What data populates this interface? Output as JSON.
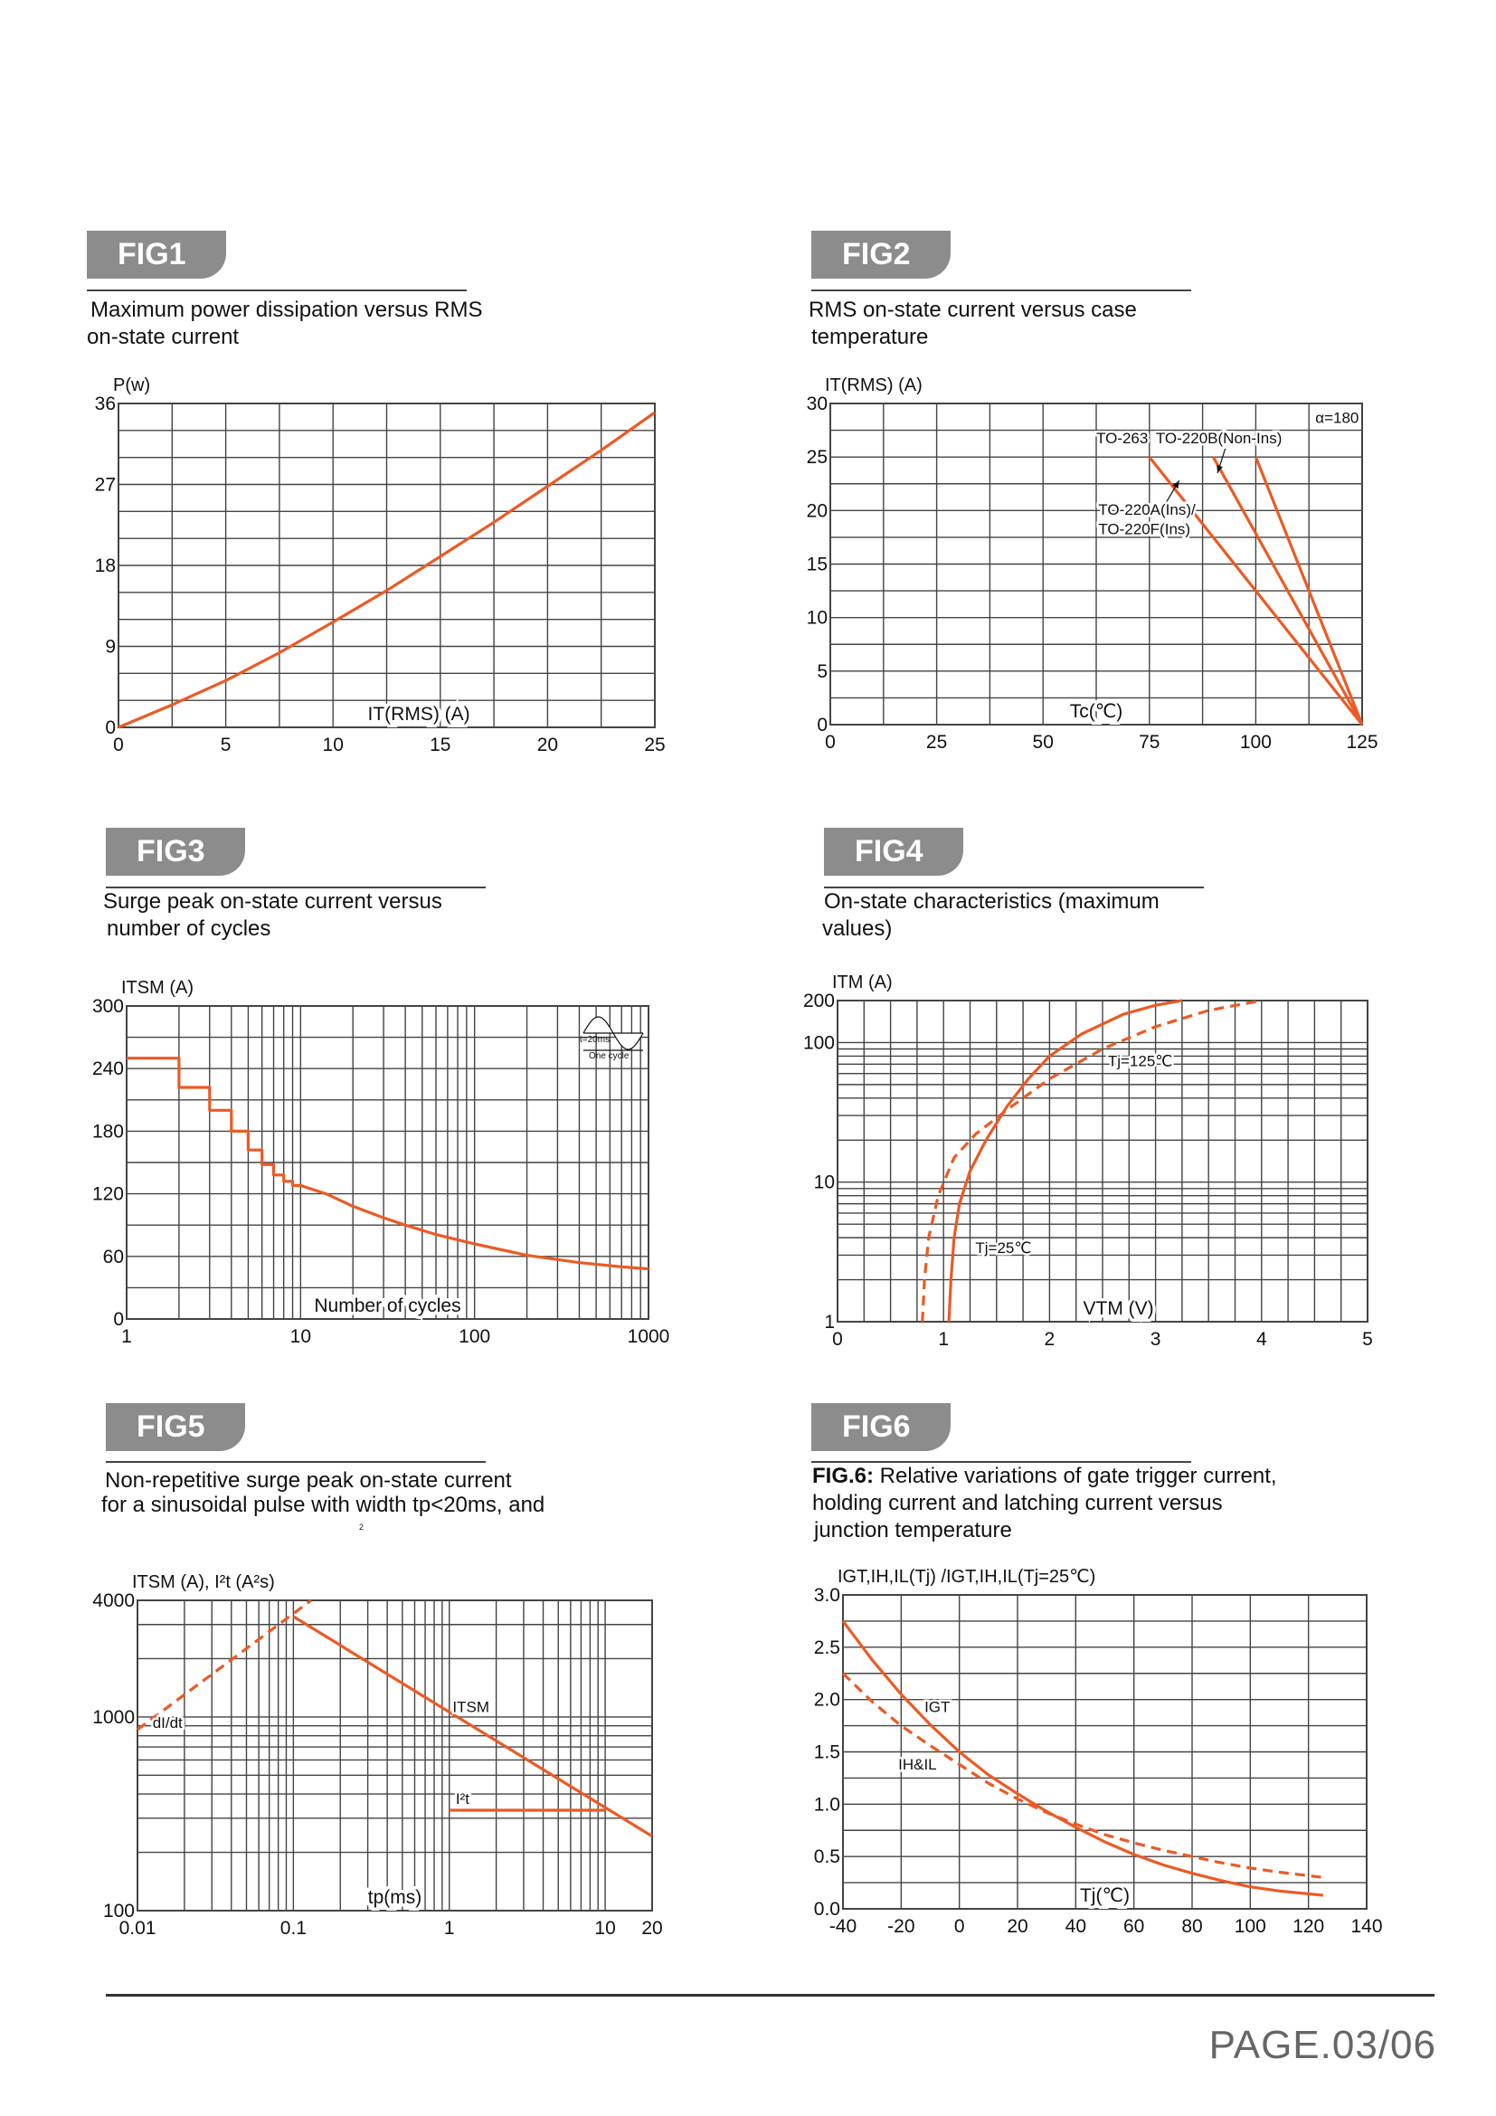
{
  "figures": [
    {
      "tab": "FIG1",
      "title_lines": [
        "Maximum power dissipation versus RMS",
        "on-state current"
      ]
    },
    {
      "tab": "FIG2",
      "title_lines": [
        "RMS on-state current versus case",
        "temperature"
      ]
    },
    {
      "tab": "FIG3",
      "title_lines": [
        "Surge peak on-state current versus",
        "number of cycles"
      ]
    },
    {
      "tab": "FIG4",
      "title_lines": [
        "On-state characteristics (maximum",
        "values)"
      ]
    },
    {
      "tab": "FIG5",
      "title_lines": [
        "Non-repetitive surge peak on-state current",
        "for a sinusoidal pulse with width tp<20ms, and"
      ],
      "stray_mark": "2"
    },
    {
      "tab": "FIG6",
      "title_bold": "FIG.6:",
      "title_lines": [
        " Relative variations of gate trigger current,",
        "holding current and latching current versus",
        "junction temperature"
      ]
    }
  ],
  "footer": {
    "page": "PAGE.03/06"
  },
  "colors": {
    "curve": "#ec5a24",
    "grid": "#444444",
    "tab": "#8c8c8c"
  },
  "chart_data": [
    {
      "type": "line",
      "xscale": "linear",
      "yscale": "linear",
      "xlabel": "IT(RMS) (A)",
      "ylabel": "P(w)",
      "xlim": [
        0,
        25
      ],
      "ylim": [
        0,
        36
      ],
      "grid": true,
      "xticks": [
        0,
        5,
        10,
        15,
        20,
        25
      ],
      "yticks": [
        0,
        9,
        18,
        27,
        36
      ],
      "series": [
        {
          "name": "P",
          "style": "solid",
          "x": [
            0,
            2.5,
            5,
            7.5,
            10,
            12.5,
            15,
            17.5,
            20,
            22.5,
            25
          ],
          "y": [
            0,
            2.5,
            5.2,
            8.3,
            11.7,
            15.2,
            19,
            22.8,
            26.8,
            30.8,
            35
          ]
        }
      ],
      "annotations": []
    },
    {
      "type": "line",
      "xscale": "linear",
      "yscale": "linear",
      "xlabel": "Tc(℃)",
      "ylabel": "IT(RMS) (A)",
      "xlim": [
        0,
        125
      ],
      "ylim": [
        0,
        30
      ],
      "grid": true,
      "xticks": [
        0,
        25,
        50,
        75,
        100,
        125
      ],
      "yticks": [
        0,
        5,
        10,
        15,
        20,
        25,
        30
      ],
      "series": [
        {
          "name": "TO-263 / TO-220A(Ins) / TO-220F(Ins)",
          "style": "solid",
          "x": [
            75,
            125
          ],
          "y": [
            25,
            0
          ]
        },
        {
          "name": "TO-220B(Non-Ins)",
          "style": "solid",
          "x": [
            90,
            125
          ],
          "y": [
            25,
            0
          ]
        },
        {
          "name": "α=180 (third curve)",
          "style": "solid",
          "x": [
            100,
            125
          ],
          "y": [
            25,
            0
          ]
        }
      ],
      "annotations": [
        {
          "text": "α=180",
          "x": 114,
          "y": 28.2
        },
        {
          "text": "TO-263",
          "x": 62.5,
          "y": 26.3
        },
        {
          "text": "TO-220B(Non-Ins)",
          "x": 76.5,
          "y": 26.3
        },
        {
          "text": "TO-220A(Ins)/",
          "x": 63,
          "y": 19.6
        },
        {
          "text": "TO-220F(Ins)",
          "x": 63,
          "y": 17.8
        }
      ],
      "arrows": [
        [
          77.5,
          19.8,
          82,
          22.8
        ],
        [
          93,
          26,
          91,
          23.5
        ]
      ]
    },
    {
      "type": "line",
      "xscale": "log",
      "yscale": "linear",
      "xlabel": "Number of cycles",
      "ylabel": "ITSM (A)",
      "xlim": [
        1,
        1000
      ],
      "ylim": [
        0,
        300
      ],
      "grid": true,
      "xticks": [
        1,
        10,
        100,
        1000
      ],
      "yticks": [
        0,
        60,
        120,
        180,
        240,
        300
      ],
      "series": [
        {
          "name": "ITSM",
          "style": "solid",
          "x": [
            1,
            2,
            2,
            3,
            3,
            4,
            4,
            5,
            5,
            6,
            6,
            7,
            7,
            8,
            8,
            9,
            9,
            10,
            14,
            20,
            30,
            40,
            60,
            100,
            200,
            400,
            700,
            1000
          ],
          "y": [
            250,
            250,
            222,
            222,
            200,
            200,
            180,
            180,
            162,
            162,
            148,
            148,
            138,
            138,
            132,
            132,
            128,
            128,
            120,
            108,
            97,
            90,
            81,
            72,
            61,
            54,
            50,
            48
          ]
        }
      ],
      "annotations": [],
      "inset": {
        "period_label": "t=20ms",
        "cycle_label": "One cycle"
      }
    },
    {
      "type": "line",
      "xscale": "linear",
      "yscale": "log",
      "xlabel": "VTM (V)",
      "ylabel": "ITM (A)",
      "xlim": [
        0,
        5
      ],
      "ylim": [
        1,
        200
      ],
      "grid": true,
      "xticks": [
        0,
        1,
        2,
        3,
        4,
        5
      ],
      "yticks": [
        1,
        10,
        100,
        200
      ],
      "series": [
        {
          "name": "Tj=25℃",
          "style": "solid",
          "x": [
            1.05,
            1.07,
            1.1,
            1.15,
            1.25,
            1.4,
            1.6,
            1.8,
            2.0,
            2.3,
            2.7,
            3.0,
            3.25
          ],
          "y": [
            1,
            2,
            4,
            7,
            12,
            20,
            35,
            55,
            80,
            115,
            160,
            185,
            200
          ]
        },
        {
          "name": "Tj=125℃",
          "style": "dashed",
          "x": [
            0.8,
            0.82,
            0.86,
            0.95,
            1.1,
            1.3,
            1.6,
            2.0,
            2.5,
            3.0,
            3.5,
            4.0
          ],
          "y": [
            1,
            2,
            4,
            8,
            15,
            22,
            33,
            55,
            90,
            130,
            170,
            200
          ]
        }
      ],
      "annotations": [
        {
          "text": "Tj=125℃",
          "x": 2.55,
          "y": 68
        },
        {
          "text": "Tj=25℃",
          "x": 1.3,
          "y": 3.1
        }
      ]
    },
    {
      "type": "line",
      "xscale": "log",
      "yscale": "log",
      "xlabel": "tp(ms)",
      "ylabel": "ITSM (A), I²t (A²s)",
      "xlim": [
        0.01,
        20
      ],
      "ylim": [
        100,
        4000
      ],
      "grid": true,
      "xticks": [
        0.01,
        0.1,
        1,
        10,
        20
      ],
      "yticks": [
        100,
        1000,
        4000
      ],
      "series": [
        {
          "name": "ITSM",
          "style": "solid",
          "x": [
            0.1,
            20
          ],
          "y": [
            3300,
            242
          ]
        },
        {
          "name": "I²t",
          "style": "solid",
          "x": [
            1,
            10
          ],
          "y": [
            330,
            330
          ]
        },
        {
          "name": "dI/dt",
          "style": "dashed",
          "x": [
            0.01,
            0.13
          ],
          "y": [
            860,
            4000
          ]
        }
      ],
      "annotations": [
        {
          "text": "ITSM",
          "x": 1.05,
          "y": 1060
        },
        {
          "text": "I²t",
          "x": 1.1,
          "y": 355
        },
        {
          "text": "dI/dt",
          "x": 0.0125,
          "y": 880
        }
      ]
    },
    {
      "type": "line",
      "xscale": "linear",
      "yscale": "linear",
      "xlabel": "Tj(℃)",
      "ylabel": "IGT,IH,IL(Tj) /IGT,IH,IL(Tj=25℃)",
      "xlim": [
        -40,
        140
      ],
      "ylim": [
        0,
        3
      ],
      "grid": true,
      "xticks": [
        -40,
        -20,
        0,
        20,
        40,
        60,
        80,
        100,
        120,
        140
      ],
      "yticks": [
        0.0,
        0.5,
        1.0,
        1.5,
        2.0,
        2.5,
        3.0
      ],
      "ytick_labels": [
        "0.0",
        "0.5",
        "1.0",
        "1.5",
        "2.0",
        "2.5",
        "3.0"
      ],
      "series": [
        {
          "name": "IGT",
          "style": "solid",
          "x": [
            -40,
            -30,
            -20,
            -10,
            0,
            10,
            20,
            30,
            40,
            50,
            60,
            70,
            80,
            90,
            100,
            110,
            125
          ],
          "y": [
            2.75,
            2.38,
            2.05,
            1.76,
            1.5,
            1.28,
            1.1,
            0.93,
            0.78,
            0.64,
            0.52,
            0.42,
            0.34,
            0.27,
            0.21,
            0.17,
            0.13
          ]
        },
        {
          "name": "IH&IL",
          "style": "dashed",
          "x": [
            -40,
            -30,
            -20,
            -10,
            0,
            10,
            20,
            30,
            40,
            50,
            60,
            70,
            80,
            90,
            100,
            110,
            125
          ],
          "y": [
            2.25,
            1.98,
            1.75,
            1.56,
            1.38,
            1.2,
            1.05,
            0.92,
            0.81,
            0.71,
            0.63,
            0.56,
            0.5,
            0.44,
            0.39,
            0.35,
            0.3
          ]
        }
      ],
      "annotations": [
        {
          "text": "IGT",
          "x": -12,
          "y": 1.88
        },
        {
          "text": "IH&IL",
          "x": -21,
          "y": 1.33
        }
      ]
    }
  ]
}
